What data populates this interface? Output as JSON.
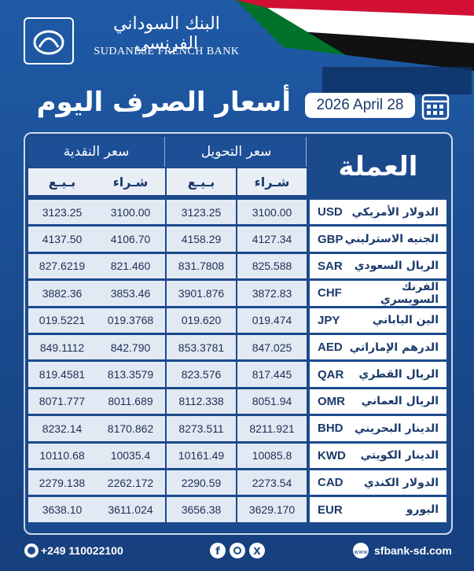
{
  "header": {
    "bank_name_ar": "البنك السوداني الفرنسي",
    "bank_name_en": "SUDANESE FRENCH BANK",
    "title": "أسعار الصرف اليوم",
    "date": "2026 April 28"
  },
  "table": {
    "currency_header": "العملة",
    "transfer_header": "سعر التحويل",
    "cash_header": "سعر النقدية",
    "buy_header": "شـراء",
    "sell_header": "بـيـع",
    "rows": [
      [
        "الدولار الأمريكي",
        "USD",
        "3100.00",
        "3123.25",
        "3100.00",
        "3123.25"
      ],
      [
        "الجنيه الاسترليني",
        "GBP",
        "4127.34",
        "4158.29",
        "4106.70",
        "4137.50"
      ],
      [
        "الريال السعودي",
        "SAR",
        "825.588",
        "831.7808",
        "821.460",
        "827.6219"
      ],
      [
        "الفرنك السويسري",
        "CHF",
        "3872.83",
        "3901.876",
        "3853.46",
        "3882.36"
      ],
      [
        "الين الياباني",
        "JPY",
        "019.474",
        "019.620",
        "019.3768",
        "019.5221"
      ],
      [
        "الدرهم الإماراتي",
        "AED",
        "847.025",
        "853.3781",
        "842.790",
        "849.1112"
      ],
      [
        "الريال القطري",
        "QAR",
        "817.445",
        "823.576",
        "813.3579",
        "819.4581"
      ],
      [
        "الريال العماني",
        "OMR",
        "8051.94",
        "8112.338",
        "8011.689",
        "8071.777"
      ],
      [
        "الدينار البحريني",
        "BHD",
        "8211.921",
        "8273.511",
        "8170.862",
        "8232.14"
      ],
      [
        "الدينار الكويتي",
        "KWD",
        "10085.8",
        "10161.49",
        "10035.4",
        "10110.68"
      ],
      [
        "الدولار الكندي",
        "CAD",
        "2273.54",
        "2290.59",
        "2262.172",
        "2279.138"
      ],
      [
        "اليورو",
        "EUR",
        "3629.170",
        "3656.38",
        "3611.024",
        "3638.10"
      ]
    ]
  },
  "footer": {
    "phone": "+249 110022100",
    "website": "sfbank-sd.com"
  }
}
